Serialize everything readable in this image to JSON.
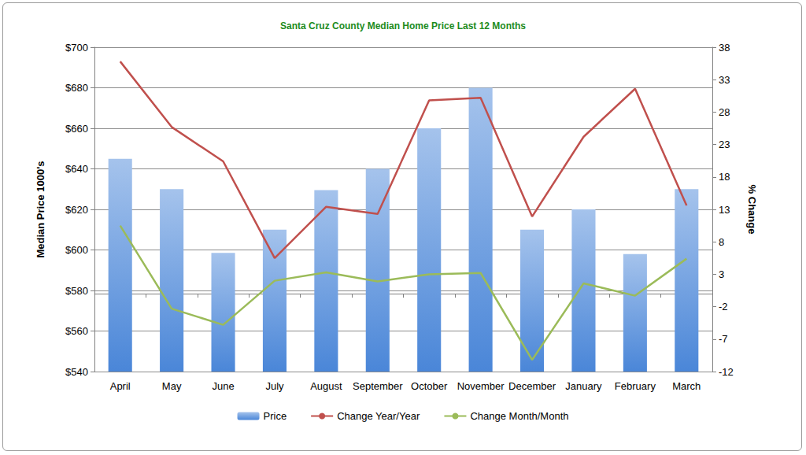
{
  "chart_data": {
    "type": "bar",
    "title": "Santa Cruz County Median Home Price Last 12 Months",
    "y_label": "Median Price 1000's",
    "y2_label": "% Change",
    "categories": [
      "April",
      "May",
      "June",
      "July",
      "August",
      "September",
      "October",
      "November",
      "December",
      "January",
      "February",
      "March"
    ],
    "series": [
      {
        "name": "Price",
        "type": "bar",
        "color": "#4a86d8",
        "values": [
          645,
          630,
          598.5,
          610,
          629.5,
          640,
          660,
          680,
          610,
          620,
          598,
          630
        ]
      },
      {
        "name": "Change Year/Year",
        "type": "line",
        "axis": "y2",
        "color": "#c0504d",
        "marker": "none",
        "values": [
          35.8,
          25.7,
          20.4,
          5.5,
          13.4,
          12.3,
          29.8,
          30.2,
          11.9,
          24.2,
          31.6,
          13.6
        ]
      },
      {
        "name": "Change Month/Month",
        "type": "line",
        "axis": "y2",
        "color": "#9bbb59",
        "marker": "none",
        "values": [
          10.5,
          -2.3,
          -4.8,
          2.0,
          3.3,
          1.9,
          3.0,
          3.2,
          -10.2,
          1.6,
          -0.3,
          5.4
        ]
      }
    ],
    "ylim": [
      540,
      700
    ],
    "yticks": [
      {
        "value": 540,
        "label": "$540"
      },
      {
        "value": 560,
        "label": "$560"
      },
      {
        "value": 580,
        "label": "$580"
      },
      {
        "value": 600,
        "label": "$600"
      },
      {
        "value": 620,
        "label": "$620"
      },
      {
        "value": 640,
        "label": "$640"
      },
      {
        "value": 660,
        "label": "$660"
      },
      {
        "value": 680,
        "label": "$680"
      },
      {
        "value": 700,
        "label": "$700"
      }
    ],
    "y2lim": [
      -12,
      38
    ],
    "y2ticks": [
      -12,
      -7,
      -2,
      3,
      8,
      13,
      18,
      23,
      28,
      33,
      38
    ],
    "grid": true,
    "legend": "bottom"
  }
}
